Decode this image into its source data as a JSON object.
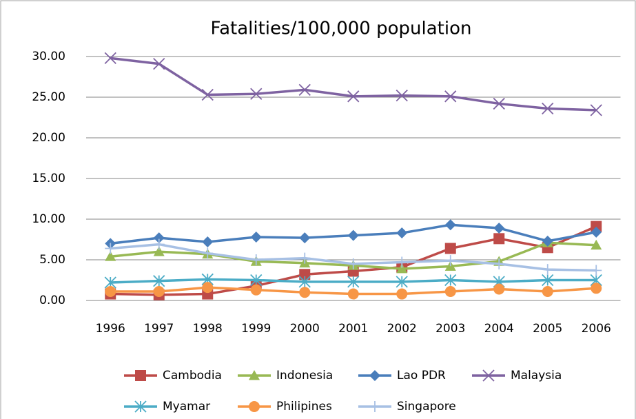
{
  "chart_data": {
    "type": "line",
    "title": "Fatalities/100,000 population",
    "categories": [
      "1996",
      "1997",
      "1998",
      "1999",
      "2000",
      "2001",
      "2002",
      "2003",
      "2004",
      "2005",
      "2006"
    ],
    "series": [
      {
        "name": "Cambodia",
        "color": "#be4b48",
        "values": [
          0.8,
          0.7,
          0.8,
          1.8,
          3.2,
          3.6,
          4.1,
          6.4,
          7.6,
          6.5,
          9.1
        ]
      },
      {
        "name": "Indonesia",
        "color": "#98b954",
        "values": [
          5.4,
          6.0,
          5.7,
          4.8,
          4.6,
          4.3,
          3.9,
          4.2,
          4.8,
          7.1,
          6.8
        ]
      },
      {
        "name": "Lao PDR",
        "color": "#4a7ebb",
        "values": [
          7.0,
          7.7,
          7.2,
          7.8,
          7.7,
          8.0,
          8.3,
          9.3,
          8.9,
          7.3,
          8.4
        ]
      },
      {
        "name": "Malaysia",
        "color": "#7e62a1",
        "values": [
          29.8,
          29.1,
          25.3,
          25.4,
          25.9,
          25.1,
          25.2,
          25.1,
          24.2,
          23.6,
          23.4
        ]
      },
      {
        "name": "Myamar",
        "color": "#4bacc6",
        "values": [
          2.2,
          2.4,
          2.6,
          2.5,
          2.3,
          2.3,
          2.3,
          2.5,
          2.3,
          2.5,
          2.5
        ]
      },
      {
        "name": "Philipines",
        "color": "#f79646",
        "values": [
          1.1,
          1.1,
          1.6,
          1.3,
          1.0,
          0.8,
          0.8,
          1.1,
          1.4,
          1.1,
          1.5
        ]
      },
      {
        "name": "Singapore",
        "color": "#a7c0e4",
        "values": [
          6.4,
          6.9,
          5.8,
          5.0,
          5.2,
          4.5,
          4.7,
          4.9,
          4.5,
          3.8,
          3.7
        ]
      }
    ],
    "ylim": [
      0,
      30
    ],
    "yticks": [
      {
        "value": 0,
        "label": "0.00"
      },
      {
        "value": 5,
        "label": "5.00"
      },
      {
        "value": 10,
        "label": "10.00"
      },
      {
        "value": 15,
        "label": "15.00"
      },
      {
        "value": 20,
        "label": "20.00"
      },
      {
        "value": 25,
        "label": "25.00"
      },
      {
        "value": 30,
        "label": "30.00"
      }
    ],
    "grid": true,
    "legend": "bottom"
  }
}
